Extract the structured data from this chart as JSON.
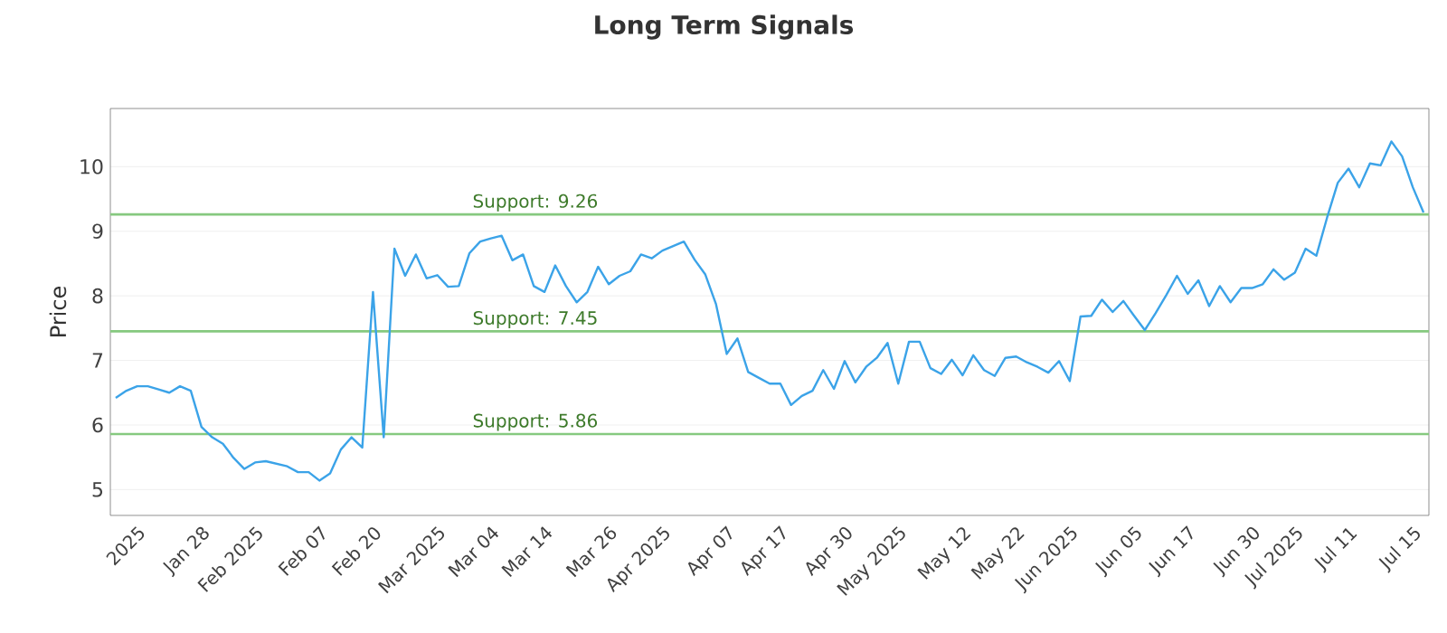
{
  "chart_data": {
    "type": "line",
    "title": "Long Term Signals",
    "ylabel": "Price",
    "categories": [
      null,
      null,
      "2025",
      null,
      null,
      null,
      null,
      null,
      "Jan 28",
      null,
      null,
      null,
      null,
      "Feb 2025",
      null,
      null,
      null,
      null,
      null,
      "Feb 07",
      null,
      null,
      null,
      null,
      "Feb 20",
      null,
      null,
      null,
      null,
      null,
      "Mar 2025",
      null,
      null,
      null,
      null,
      "Mar 04",
      null,
      null,
      null,
      null,
      "Mar 14",
      null,
      null,
      null,
      null,
      null,
      "Mar 26",
      null,
      null,
      null,
      null,
      "Apr 2025",
      null,
      null,
      null,
      null,
      null,
      "Apr 07",
      null,
      null,
      null,
      null,
      "Apr 17",
      null,
      null,
      null,
      null,
      null,
      "Apr 30",
      null,
      null,
      null,
      null,
      "May 2025",
      null,
      null,
      null,
      null,
      null,
      "May 12",
      null,
      null,
      null,
      null,
      "May 22",
      null,
      null,
      null,
      null,
      "Jun 2025",
      null,
      null,
      null,
      null,
      null,
      "Jun 05",
      null,
      null,
      null,
      null,
      "Jun 17",
      null,
      null,
      null,
      null,
      null,
      "Jun 30",
      null,
      null,
      null,
      "Jul 2025",
      null,
      null,
      null,
      null,
      "Jul 11",
      null,
      null,
      null,
      null,
      null,
      "Jul 15",
      null
    ],
    "values": [
      6.42,
      6.53,
      6.6,
      6.6,
      6.55,
      6.5,
      6.6,
      6.53,
      5.97,
      5.81,
      5.71,
      5.49,
      5.32,
      5.42,
      5.44,
      5.4,
      5.36,
      5.27,
      5.27,
      5.14,
      5.25,
      5.62,
      5.81,
      5.65,
      8.06,
      5.81,
      8.73,
      8.31,
      8.64,
      8.27,
      8.32,
      8.14,
      8.15,
      8.66,
      8.84,
      8.89,
      8.93,
      8.55,
      8.64,
      8.15,
      8.06,
      8.47,
      8.15,
      7.9,
      8.06,
      8.45,
      8.18,
      8.31,
      8.38,
      8.64,
      8.58,
      8.7,
      8.77,
      8.84,
      8.56,
      8.33,
      7.87,
      7.1,
      7.34,
      6.82,
      6.73,
      6.64,
      6.64,
      6.31,
      6.45,
      6.53,
      6.85,
      6.56,
      6.99,
      6.66,
      6.9,
      7.04,
      7.27,
      6.64,
      7.29,
      7.29,
      6.88,
      6.79,
      7.01,
      6.77,
      7.08,
      6.85,
      6.76,
      7.04,
      7.06,
      6.97,
      6.9,
      6.81,
      6.99,
      6.68,
      7.68,
      7.69,
      7.94,
      7.75,
      7.92,
      7.69,
      7.47,
      7.73,
      8.01,
      8.31,
      8.03,
      8.24,
      7.84,
      8.15,
      7.9,
      8.12,
      8.12,
      8.18,
      8.41,
      8.25,
      8.36,
      8.73,
      8.62,
      9.21,
      9.75,
      9.97,
      9.68,
      10.05,
      10.02,
      10.39,
      10.16,
      9.68,
      9.29
    ],
    "color": "#3ba3e8",
    "ylim": [
      4.6,
      10.9
    ],
    "yticks": [
      5,
      6,
      7,
      8,
      9,
      10
    ],
    "grid": "y",
    "ref_lines": [
      {
        "axis": "y",
        "value": 9.26,
        "label": "Support: 9.26",
        "color": "#86c97f"
      },
      {
        "axis": "y",
        "value": 7.45,
        "label": "Support: 7.45",
        "color": "#86c97f"
      },
      {
        "axis": "y",
        "value": 5.86,
        "label": "Support: 5.86",
        "color": "#86c97f"
      }
    ]
  }
}
